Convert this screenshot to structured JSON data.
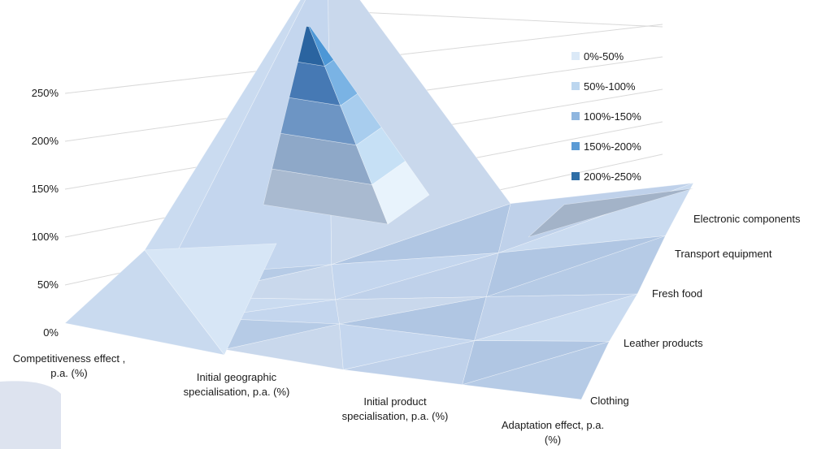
{
  "chart_data": {
    "type": "surface",
    "yaxis_ticks": [
      "0%",
      "50%",
      "100%",
      "150%",
      "200%",
      "250%"
    ],
    "zlim": [
      0,
      250
    ],
    "x_categories": [
      "Competitiveness effect , p.a. (%)",
      "Initial geographic specialisation, p.a. (%)",
      "Initial product specialisation, p.a. (%)",
      "Adaptation effect, p.a. (%)"
    ],
    "depth_categories": [
      "Clothing",
      "Leather products",
      "Fresh food",
      "Transport equipment",
      "Electronic components"
    ],
    "values": [
      [
        5,
        0,
        0,
        0
      ],
      [
        10,
        10,
        0,
        5
      ],
      [
        5,
        0,
        0,
        0
      ],
      [
        0,
        0,
        0,
        5
      ],
      [
        0,
        255,
        5,
        5
      ]
    ],
    "legend": {
      "placement": "top-right",
      "items": [
        {
          "label": "0%-50%",
          "color": "#dbe9f7"
        },
        {
          "label": "50%-100%",
          "color": "#bcd6ef"
        },
        {
          "label": "100%-150%",
          "color": "#8fb6df"
        },
        {
          "label": "150%-200%",
          "color": "#5b9bd5"
        },
        {
          "label": "200%-250%",
          "color": "#2f6ea6"
        }
      ]
    },
    "grid": true
  }
}
